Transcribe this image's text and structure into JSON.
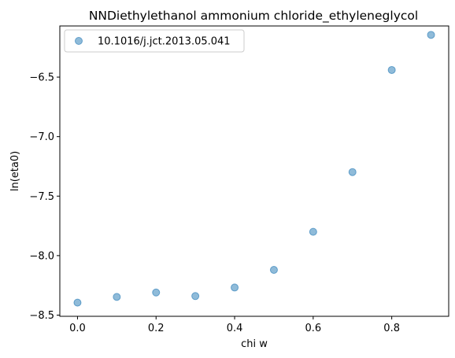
{
  "chart_data": {
    "type": "scatter",
    "title": "NNDiethylethanol ammonium chloride_ethyleneglycol",
    "xlabel": "chi w",
    "ylabel": "ln(eta0)",
    "xlim": [
      -0.045,
      0.945
    ],
    "ylim": [
      -8.51,
      -6.07
    ],
    "xticks": [
      0.0,
      0.2,
      0.4,
      0.6,
      0.8
    ],
    "xtick_labels": [
      "0.0",
      "0.2",
      "0.4",
      "0.6",
      "0.8"
    ],
    "yticks": [
      -8.5,
      -8.0,
      -7.5,
      -7.0,
      -6.5
    ],
    "ytick_labels": [
      "−8.5",
      "−8.0",
      "−7.5",
      "−7.0",
      "−6.5"
    ],
    "grid": false,
    "legend_position": "top-left",
    "series": [
      {
        "name": "10.1016/j.jct.2013.05.041",
        "color": "#1f77b4",
        "x": [
          0.0,
          0.1,
          0.2,
          0.3,
          0.4,
          0.5,
          0.6,
          0.7,
          0.8,
          0.9
        ],
        "y": [
          -8.395,
          -8.347,
          -8.31,
          -8.34,
          -8.268,
          -8.12,
          -7.8,
          -7.298,
          -6.44,
          -6.145
        ]
      }
    ]
  }
}
